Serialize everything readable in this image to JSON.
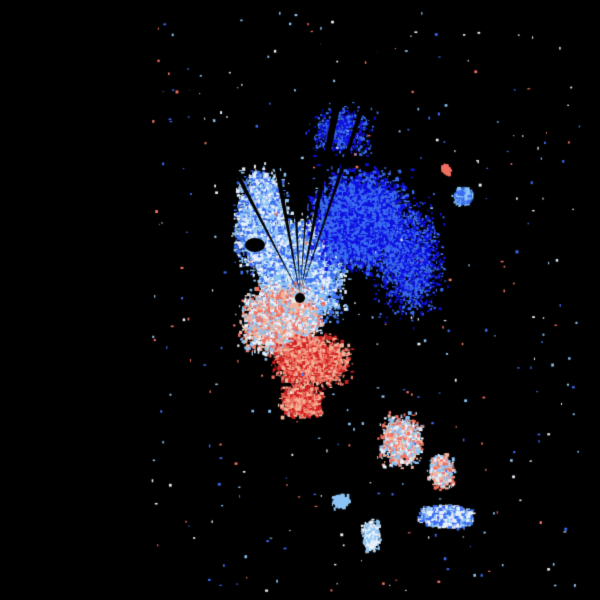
{
  "image": {
    "background": "#000000",
    "palette": {
      "inbound_strong": "#1010e0",
      "inbound": "#3a6cf0",
      "inbound_light": "#8cc4f4",
      "near_zero": "#e8f0fa",
      "outbound_light": "#f4b49a",
      "outbound": "#f07060",
      "outbound_strong": "#d02020"
    }
  }
}
